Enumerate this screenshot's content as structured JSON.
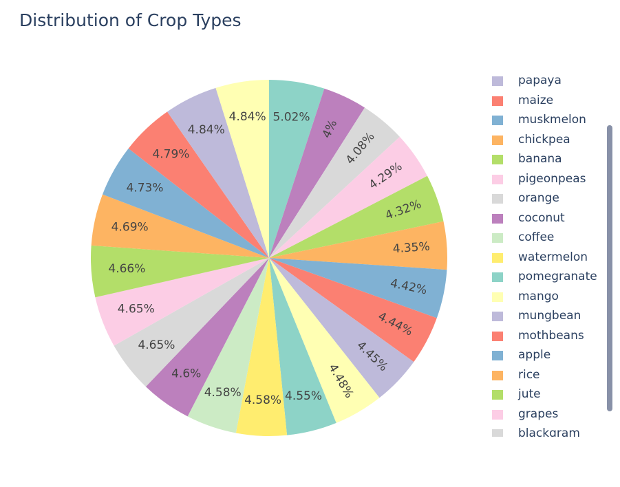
{
  "chart_data": {
    "type": "pie",
    "title": "Distribution of Crop Types",
    "sort": "descending, clockwise from 12 o'clock",
    "slices": [
      {
        "label": "pomegranate",
        "value": 5.02,
        "text": "5.02%",
        "color": "#8dd3c7"
      },
      {
        "label": "coconut",
        "value": 4.0,
        "text": "4%",
        "color": "#bc80bd"
      },
      {
        "label": "orange",
        "value": 4.08,
        "text": "4.08%",
        "color": "#d9d9d9"
      },
      {
        "label": "pigeonpeas",
        "value": 4.29,
        "text": "4.29%",
        "color": "#fccde5"
      },
      {
        "label": "banana",
        "value": 4.32,
        "text": "4.32%",
        "color": "#b3de69"
      },
      {
        "label": "chickpea",
        "value": 4.35,
        "text": "4.35%",
        "color": "#fdb462"
      },
      {
        "label": "muskmelon",
        "value": 4.42,
        "text": "4.42%",
        "color": "#80b1d3"
      },
      {
        "label": "maize",
        "value": 4.44,
        "text": "4.44%",
        "color": "#fb8072"
      },
      {
        "label": "papaya",
        "value": 4.45,
        "text": "4.45%",
        "color": "#bebada"
      },
      {
        "label": "mango",
        "value": 4.48,
        "text": "4.48%",
        "color": "#ffffb3"
      },
      {
        "label": "pomegranate",
        "value": 4.55,
        "text": "4.55%",
        "color": "#8dd3c7"
      },
      {
        "label": "watermelon",
        "value": 4.58,
        "text": "4.58%",
        "color": "#ffed6f"
      },
      {
        "label": "coffee",
        "value": 4.58,
        "text": "4.58%",
        "color": "#ccebc5"
      },
      {
        "label": "coconut",
        "value": 4.6,
        "text": "4.6%",
        "color": "#bc80bd"
      },
      {
        "label": "blackgram",
        "value": 4.65,
        "text": "4.65%",
        "color": "#d9d9d9"
      },
      {
        "label": "grapes",
        "value": 4.65,
        "text": "4.65%",
        "color": "#fccde5"
      },
      {
        "label": "jute",
        "value": 4.66,
        "text": "4.66%",
        "color": "#b3de69"
      },
      {
        "label": "rice",
        "value": 4.69,
        "text": "4.69%",
        "color": "#fdb462"
      },
      {
        "label": "apple",
        "value": 4.73,
        "text": "4.73%",
        "color": "#80b1d3"
      },
      {
        "label": "mothbeans",
        "value": 4.79,
        "text": "4.79%",
        "color": "#fb8072"
      },
      {
        "label": "mungbean",
        "value": 4.84,
        "text": "4.84%",
        "color": "#bebada"
      },
      {
        "label": "mango",
        "value": 4.84,
        "text": "4.84%",
        "color": "#ffffb3"
      }
    ],
    "legend": {
      "placement": "right",
      "scrollable": true,
      "items": [
        {
          "label": "papaya",
          "color": "#bebada"
        },
        {
          "label": "maize",
          "color": "#fb8072"
        },
        {
          "label": "muskmelon",
          "color": "#80b1d3"
        },
        {
          "label": "chickpea",
          "color": "#fdb462"
        },
        {
          "label": "banana",
          "color": "#b3de69"
        },
        {
          "label": "pigeonpeas",
          "color": "#fccde5"
        },
        {
          "label": "orange",
          "color": "#d9d9d9"
        },
        {
          "label": "coconut",
          "color": "#bc80bd"
        },
        {
          "label": "coffee",
          "color": "#ccebc5"
        },
        {
          "label": "watermelon",
          "color": "#ffed6f"
        },
        {
          "label": "pomegranate",
          "color": "#8dd3c7"
        },
        {
          "label": "mango",
          "color": "#ffffb3"
        },
        {
          "label": "mungbean",
          "color": "#bebada"
        },
        {
          "label": "mothbeans",
          "color": "#fb8072"
        },
        {
          "label": "apple",
          "color": "#80b1d3"
        },
        {
          "label": "rice",
          "color": "#fdb462"
        },
        {
          "label": "jute",
          "color": "#b3de69"
        },
        {
          "label": "grapes",
          "color": "#fccde5"
        },
        {
          "label": "blackgram",
          "color": "#d9d9d9"
        }
      ]
    }
  }
}
